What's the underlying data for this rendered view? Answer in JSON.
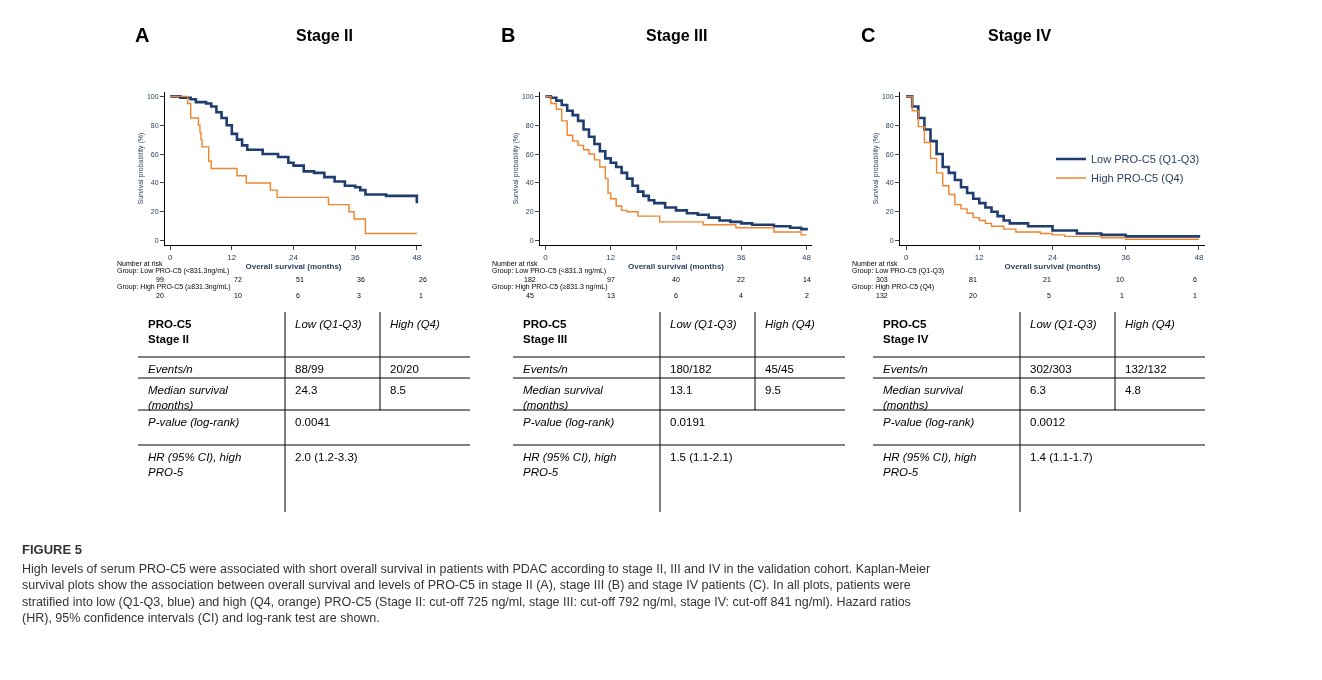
{
  "chart_data": [
    {
      "type": "step",
      "title": "Stage II",
      "xlabel": "Overall survival (months)",
      "ylabel": "Survival probability (%)",
      "xlim": [
        -1,
        49
      ],
      "ylim": [
        -3,
        103
      ],
      "xticks": [
        0,
        12,
        24,
        36,
        48
      ],
      "yticks": [
        0,
        20,
        40,
        60,
        80,
        100
      ],
      "line_style": "solid",
      "series": [
        {
          "color": "#1f3d6e",
          "x": [
            0,
            2,
            4,
            5,
            7,
            8,
            9,
            10,
            11,
            12,
            13,
            14,
            15,
            18,
            21,
            23,
            24,
            26,
            28,
            30,
            32,
            34,
            36,
            37,
            38,
            40,
            42,
            48
          ],
          "values": [
            100,
            99,
            98,
            96,
            95,
            93,
            89,
            85,
            80,
            74,
            70,
            66,
            63,
            60,
            58,
            54,
            52,
            48,
            47,
            44,
            41,
            38,
            37,
            35,
            32,
            32,
            31,
            26
          ]
        },
        {
          "color": "#f0842c",
          "x": [
            0,
            3.4,
            4,
            5.5,
            5.8,
            6,
            6.2,
            7.5,
            8,
            13,
            14.8,
            19.5,
            20.8,
            30.8,
            34.8,
            35.8,
            38,
            48
          ],
          "values": [
            100,
            95,
            85,
            80,
            75,
            70,
            65,
            55,
            50,
            45,
            40,
            35,
            30,
            25,
            20,
            15,
            5,
            5
          ]
        }
      ],
      "annotations": [
        "A",
        "Number at risk",
        "Group: Low PRO-C5 (<831.3ng/mL)",
        "99",
        "72",
        "51",
        "36",
        "26",
        "Group: High PRO-C5 (≥831.3ng/mL)",
        "20",
        "10",
        "6",
        "3",
        "1",
        "PRO-C5\nStage II",
        "Low (Q1-Q3)",
        "High (Q4)",
        "Events/n",
        "88/99",
        "20/20",
        "Median survival\n(months)",
        "24.3",
        "8.5",
        "P-value (log-rank)",
        "0.0041",
        "HR (95% CI), high\nPRO-5",
        "2.0 (1.2-3.3)",
        "FIGURE 5",
        "High levels of serum PRO-C5 were associated with short overall survival in patients with PDAC according to stage II, III and IV in the validation cohort. Kaplan-Meier survival plots show the association between overall survival and levels of PRO-C5 in stage II (A), stage III (B) and stage IV patients (C). In all plots, patients were stratified into low (Q1-Q3, blue) and high (Q4, orange) PRO-C5 (Stage II: cut-off 725 ng/ml, stage III: cut-off 792 ng/ml, stage IV: cut-off 841 ng/ml). Hazard ratios (HR), 95% confidence intervals (CI) and log-rank test are shown."
      ]
    },
    {
      "type": "step",
      "title": "Stage III",
      "xlabel": "Overall survival (months)",
      "ylabel": "Survival probability (%)",
      "xlim": [
        -1,
        49
      ],
      "ylim": [
        -3,
        103
      ],
      "xticks": [
        0,
        12,
        24,
        36,
        48
      ],
      "yticks": [
        0,
        20,
        40,
        60,
        80,
        100
      ],
      "line_style": "solid",
      "series": [
        {
          "color": "#1f3d6e",
          "x": [
            0,
            1,
            2,
            3,
            4,
            5,
            6,
            7,
            8,
            9,
            10,
            11,
            12,
            13,
            14,
            15,
            16,
            17,
            18,
            19,
            20,
            22,
            24,
            26,
            28,
            30,
            32,
            34,
            36,
            38,
            42,
            45,
            47,
            48
          ],
          "values": [
            100,
            99,
            97,
            94,
            90,
            87,
            83,
            77,
            72,
            67,
            62,
            57,
            54,
            51,
            47,
            43,
            38,
            34,
            31,
            28,
            26,
            23,
            21,
            19,
            18,
            16,
            14,
            13,
            12,
            11,
            10,
            9,
            8,
            7
          ]
        },
        {
          "color": "#f0842c",
          "x": [
            0,
            1,
            2,
            3,
            4,
            5,
            6,
            7,
            8,
            9,
            10,
            11,
            11.5,
            12,
            13,
            14,
            15,
            17,
            21,
            29,
            35,
            42,
            47,
            48
          ],
          "values": [
            100,
            95,
            91,
            83,
            73,
            69,
            66,
            63,
            60,
            56,
            51,
            43,
            33,
            29,
            24,
            21,
            20,
            17,
            13,
            11,
            9,
            6,
            4,
            4
          ]
        }
      ],
      "annotations": [
        "B",
        "Number at risk",
        "Group: Low PRO-C5 (<831.3 ng/mL)",
        "182",
        "97",
        "40",
        "22",
        "14",
        "Group: High PRO-C5 (≥831.3 ng/mL)",
        "45",
        "13",
        "6",
        "4",
        "2",
        "PRO-C5\nStage III",
        "Low (Q1-Q3)",
        "High (Q4)",
        "Events/n",
        "180/182",
        "45/45",
        "Median survival\n(months)",
        "13.1",
        "9.5",
        "P-value (log-rank)",
        "0.0191",
        "HR (95% CI), high\nPRO-5",
        "1.5 (1.1-2.1)"
      ]
    },
    {
      "type": "step",
      "title": "Stage IV",
      "xlabel": "Overall survival (months)",
      "ylabel": "Survival probability (%)",
      "xlim": [
        -1,
        49
      ],
      "ylim": [
        -3,
        103
      ],
      "xticks": [
        0,
        12,
        24,
        36,
        48
      ],
      "yticks": [
        0,
        20,
        40,
        60,
        80,
        100
      ],
      "line_style": "solid",
      "legend": "right",
      "series": [
        {
          "name": "Low PRO-C5 (Q1-Q3)",
          "color": "#1f3d6e",
          "x": [
            0,
            1,
            2,
            3,
            4,
            5,
            6,
            7,
            8,
            9,
            10,
            11,
            12,
            13,
            14,
            15,
            16,
            17,
            20,
            24,
            28,
            32,
            36,
            48
          ],
          "values": [
            100,
            93,
            85,
            77,
            69,
            60,
            51,
            47,
            42,
            37,
            33,
            29,
            26,
            23,
            20,
            17,
            14,
            12,
            10,
            7,
            5,
            4,
            3,
            2
          ]
        },
        {
          "name": "High PRO-C5 (Q4)",
          "color": "#f0842c",
          "x": [
            0,
            1,
            2,
            3,
            4,
            5,
            6,
            7,
            8,
            9,
            10,
            11,
            12,
            13,
            14,
            16,
            18,
            22,
            24,
            26,
            32,
            36,
            48
          ],
          "values": [
            100,
            90,
            79,
            68,
            57,
            47,
            38,
            32,
            25,
            22,
            19,
            16,
            14,
            12,
            10,
            8,
            6,
            5,
            4,
            3,
            2,
            1,
            1
          ]
        }
      ],
      "annotations": [
        "C",
        "Number at risk",
        "Group: Low PRO-C5 (Q1-Q3)",
        "303",
        "81",
        "21",
        "10",
        "6",
        "Group: High PRO-C5 (Q4)",
        "132",
        "20",
        "5",
        "1",
        "1",
        "PRO-C5\nStage IV",
        "Low (Q1-Q3)",
        "High (Q4)",
        "Events/n",
        "302/303",
        "132/132",
        "Median survival\n(months)",
        "6.3",
        "4.8",
        "P-value (log-rank)",
        "0.0012",
        "HR (95% CI), high\nPRO-5",
        "1.4 (1.1-1.7)"
      ]
    }
  ]
}
